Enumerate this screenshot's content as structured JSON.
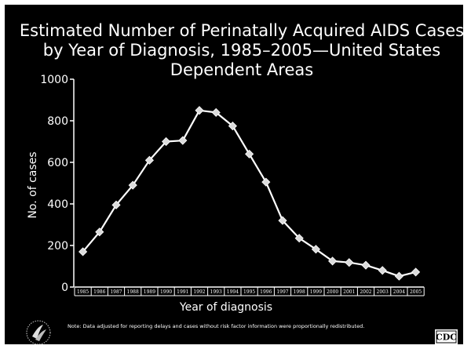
{
  "chart_data": {
    "type": "line",
    "title": [
      "Estimated Number of Perinatally Acquired AIDS Cases",
      "by Year of Diagnosis, 1985–2005—United States",
      "Dependent Areas"
    ],
    "xlabel": "Year of diagnosis",
    "ylabel": "No. of cases",
    "ylim": [
      0,
      1000
    ],
    "yticks": [
      "0",
      "200",
      "400",
      "600",
      "800",
      "1000"
    ],
    "categories": [
      "1985",
      "1986",
      "1987",
      "1988",
      "1989",
      "1990",
      "1991",
      "1992",
      "1993",
      "1994",
      "1995",
      "1996",
      "1997",
      "1998",
      "1999",
      "2000",
      "2001",
      "2002",
      "2003",
      "2004",
      "2005"
    ],
    "values": [
      170,
      265,
      395,
      490,
      610,
      700,
      705,
      850,
      840,
      775,
      640,
      505,
      320,
      235,
      182,
      125,
      118,
      105,
      80,
      52,
      72
    ],
    "grid": false,
    "colors": {
      "background": "#000000",
      "line": "#ffffff",
      "marker": "#dcdcdc"
    }
  },
  "footer": {
    "note": "Note: Data adjusted for reporting delays and cases without risk factor information were proportionally redistributed.",
    "logo_text": "CDC"
  }
}
